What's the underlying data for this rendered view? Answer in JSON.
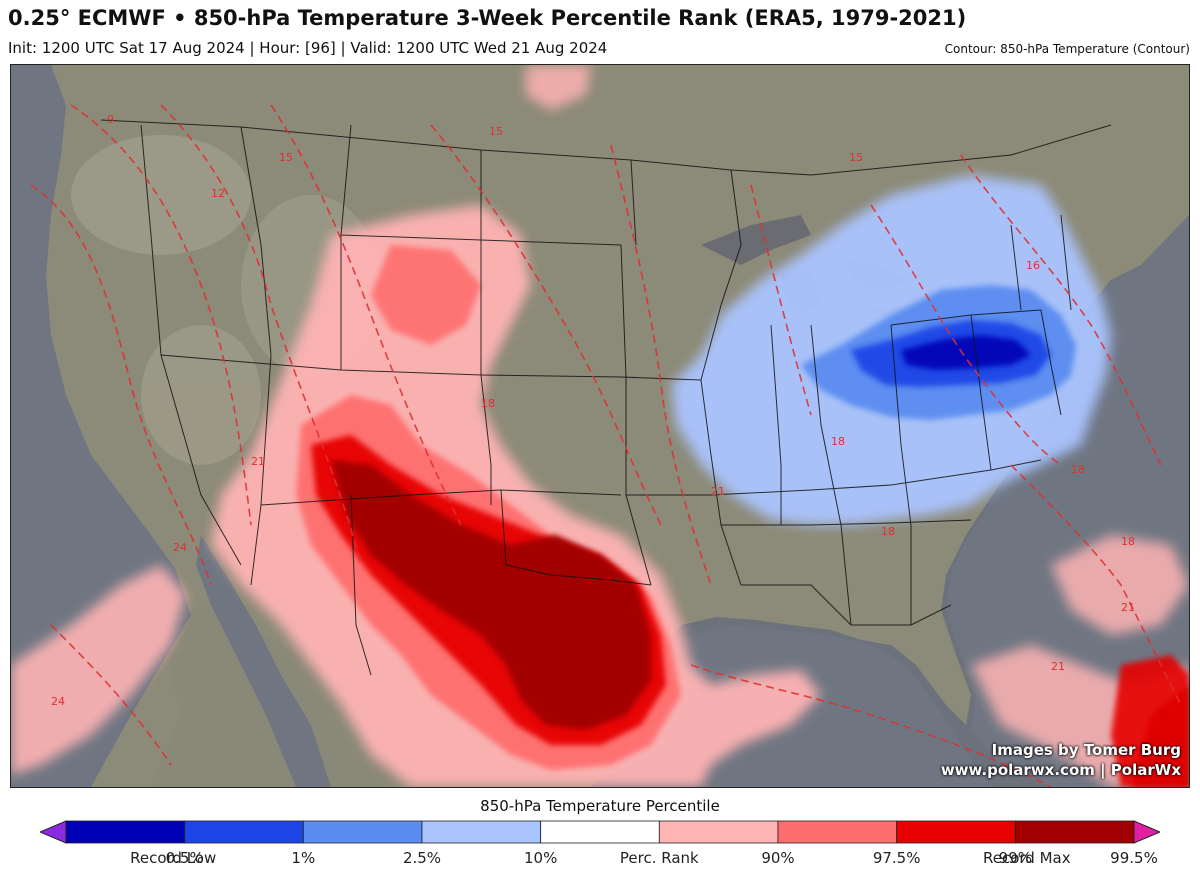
{
  "header": {
    "title": "0.25° ECMWF • 850-hPa Temperature 3-Week Percentile Rank (ERA5, 1979-2021)",
    "subtitle": "Init: 1200 UTC Sat 17 Aug 2024 | Hour: [96] | Valid: 1200 UTC Wed 21 Aug 2024",
    "contour_note": "Contour: 850-hPa Temperature (Contour)"
  },
  "map": {
    "region": "Contiguous United States",
    "contour_labels": [
      "9",
      "12",
      "15",
      "15",
      "18",
      "21",
      "24",
      "21",
      "18",
      "18",
      "18",
      "21",
      "15",
      "16",
      "18",
      "21",
      "24"
    ],
    "credit_line1": "Images by Tomer Burg",
    "credit_line2": "www.polarwx.com | PolarWx"
  },
  "legend": {
    "title": "850-hPa Temperature Percentile",
    "bins": [
      {
        "color": "#8a2be2"
      },
      {
        "color": "#0000b4"
      },
      {
        "color": "#1e46e6"
      },
      {
        "color": "#5a8cf0"
      },
      {
        "color": "#aac4ff"
      },
      {
        "color": "#ffffff"
      },
      {
        "color": "#ffb4b4"
      },
      {
        "color": "#ff6e6e"
      },
      {
        "color": "#e60000"
      },
      {
        "color": "#a00000"
      },
      {
        "color": "#e020a0"
      }
    ],
    "labels": [
      "Record Low",
      "0.5%",
      "1%",
      "2.5%",
      "10%",
      "Perc. Rank",
      "90%",
      "97.5%",
      "99%",
      "99.5%",
      "Record Max"
    ]
  }
}
